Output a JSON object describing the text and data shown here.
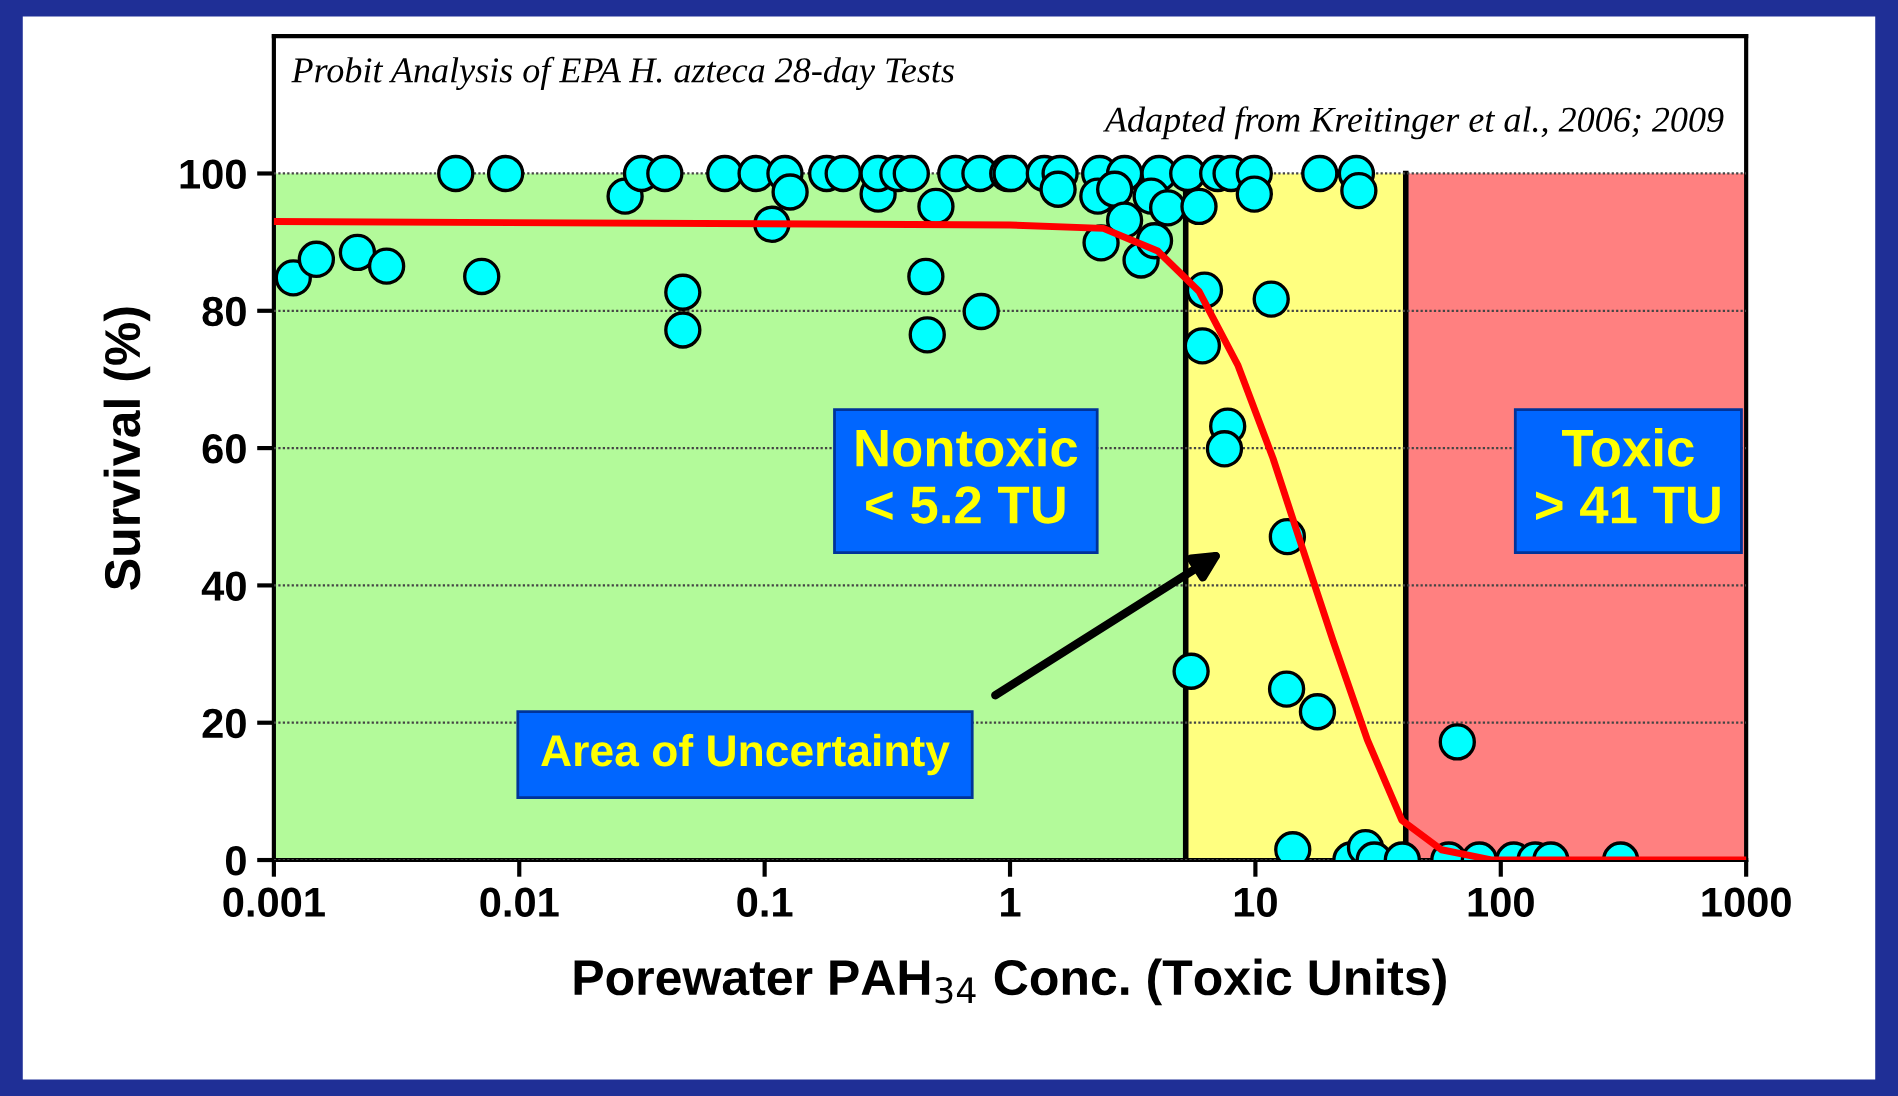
{
  "chart_data": {
    "type": "scatter",
    "title": "Probit Analysis of EPA H. azteca 28-day Tests",
    "subtitle": "Adapted from Kreitinger et al., 2006; 2009",
    "xlabel": "Porewater PAH$_{34}$ Conc. (Toxic Units)",
    "ylabel": "Survival (%)",
    "log": "x",
    "xlim": [
      0.001,
      1000
    ],
    "xticks": [
      0.001,
      0.01,
      0.1,
      1,
      10,
      100,
      1000
    ],
    "ylim": [
      0,
      120
    ],
    "yticks": [
      0,
      20,
      40,
      60,
      80,
      100
    ],
    "grid": "y",
    "bands": [
      {
        "axis": "x",
        "from": 0.001,
        "to": 5.2,
        "color": "#b3fa9a"
      },
      {
        "axis": "x",
        "from": 5.2,
        "to": 41,
        "color": "#ffff80"
      },
      {
        "axis": "x",
        "from": 41,
        "to": 1000,
        "color": "#ff8080"
      }
    ],
    "ref_lines": [
      {
        "axis": "x",
        "value": 5.2,
        "color": "#000000"
      },
      {
        "axis": "x",
        "value": 41,
        "color": "#000000"
      }
    ],
    "annotations": [
      "Nontoxic\n< 5.2 TU",
      "Toxic\n> 41 TU",
      "Area of Uncertainty"
    ],
    "series": [
      {
        "color": "#00ffff",
        "marker": "circle",
        "x": [
          0.0012,
          0.00149,
          0.00219,
          0.00288,
          0.00551,
          0.0088,
          0.00703,
          0.027,
          0.0315,
          0.0392,
          0.0464,
          0.0464,
          0.0688,
          0.0923,
          0.121,
          0.127,
          0.107,
          0.179,
          0.209,
          0.29,
          0.29,
          0.349,
          0.396,
          0.499,
          0.454,
          0.46,
          0.601,
          0.754,
          0.763,
          0.979,
          1.01,
          1.38,
          1.6,
          1.57,
          2.32,
          2.93,
          4.05,
          5.3,
          7.02,
          7.96,
          9.9,
          9.9,
          2.28,
          2.67,
          3.76,
          4.39,
          5.89,
          2.93,
          2.35,
          3.42,
          3.88,
          18.3,
          25.8,
          26.4,
          6.2,
          11.6,
          6.08,
          7.71,
          7.48,
          13.5,
          5.47,
          13.4,
          17.9,
          66.5,
          14.2,
          24.5,
          28.1,
          30.5,
          39.7,
          61.4,
          81.8,
          113,
          138,
          160,
          308
        ],
        "values": [
          84.8,
          87.5,
          88.5,
          86.5,
          100,
          100,
          85,
          96.7,
          100,
          100,
          82.7,
          77.2,
          100,
          100,
          100,
          97.3,
          92.6,
          100,
          100,
          97,
          100,
          100,
          100,
          95.2,
          85,
          76.5,
          100,
          100,
          79.9,
          100,
          100,
          100,
          100,
          97.7,
          100,
          100,
          100,
          100,
          100,
          100,
          100,
          97,
          96.7,
          97.7,
          96.7,
          95,
          95.2,
          93.2,
          89.9,
          87.4,
          90.2,
          100,
          100,
          97.5,
          83,
          81.7,
          74.9,
          63.2,
          59.9,
          47.1,
          27.5,
          24.9,
          21.6,
          17.2,
          1.5,
          0,
          1.8,
          0,
          0,
          0,
          0,
          0,
          0,
          0,
          0
        ]
      },
      {
        "type": "line",
        "color": "#ff0000",
        "marker": "none",
        "line_style": "solid",
        "x": [
          0.001,
          1,
          2.4,
          4.0,
          5.9,
          8.5,
          11.8,
          15.1,
          20.7,
          28.6,
          39.5,
          57.3,
          92.5,
          1000
        ],
        "values": [
          93,
          92.5,
          92,
          88.7,
          82.8,
          72,
          58.5,
          46.8,
          32,
          17.5,
          5.8,
          1.5,
          0,
          0
        ]
      }
    ]
  }
}
